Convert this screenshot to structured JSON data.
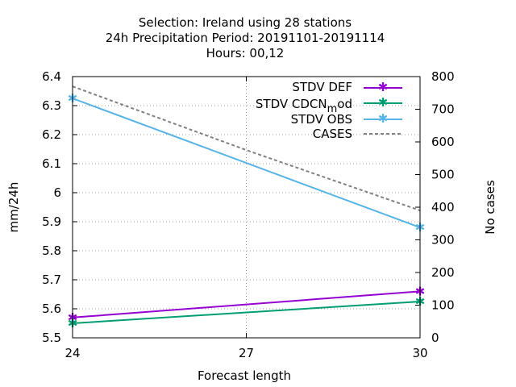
{
  "chart_data": {
    "type": "line",
    "title_lines": [
      "Selection: Ireland using    28 stations",
      "24h Precipitation    Period: 20191101-20191114",
      "Hours:  00,12"
    ],
    "xlabel": "Forecast length",
    "ylabel": "mm/24h",
    "y2label": "No cases",
    "x_ticks": [
      24,
      27,
      30
    ],
    "xlim": [
      24,
      30
    ],
    "ylim": [
      5.5,
      6.4
    ],
    "y_ticks": [
      "5.5",
      "5.6",
      "5.7",
      "5.8",
      "5.9",
      "6",
      "6.1",
      "6.2",
      "6.3",
      "6.4"
    ],
    "y2lim": [
      0,
      800
    ],
    "y2_ticks": [
      "0",
      "100",
      "200",
      "300",
      "400",
      "500",
      "600",
      "700",
      "800"
    ],
    "grid": true,
    "legend_position": "top-right",
    "series": [
      {
        "name": "STDV DEF",
        "axis": "y",
        "color": "#9400d3",
        "style": "solid",
        "marker": "star",
        "x": [
          24,
          30
        ],
        "y": [
          5.57,
          5.66
        ]
      },
      {
        "name_main": "STDV CDCN",
        "name_sub": "m",
        "name_tail": "od",
        "axis": "y",
        "color": "#009e73",
        "style": "solid",
        "marker": "star",
        "x": [
          24,
          30
        ],
        "y": [
          5.55,
          5.625
        ]
      },
      {
        "name": "STDV OBS",
        "axis": "y",
        "color": "#56b4e9",
        "style": "solid",
        "marker": "star",
        "x": [
          24,
          30
        ],
        "y": [
          6.325,
          5.88
        ]
      },
      {
        "name": "CASES",
        "axis": "y2",
        "color": "#808080",
        "style": "dashed",
        "marker": "none",
        "x": [
          24,
          27,
          30
        ],
        "y": [
          770,
          575,
          390
        ]
      }
    ]
  }
}
